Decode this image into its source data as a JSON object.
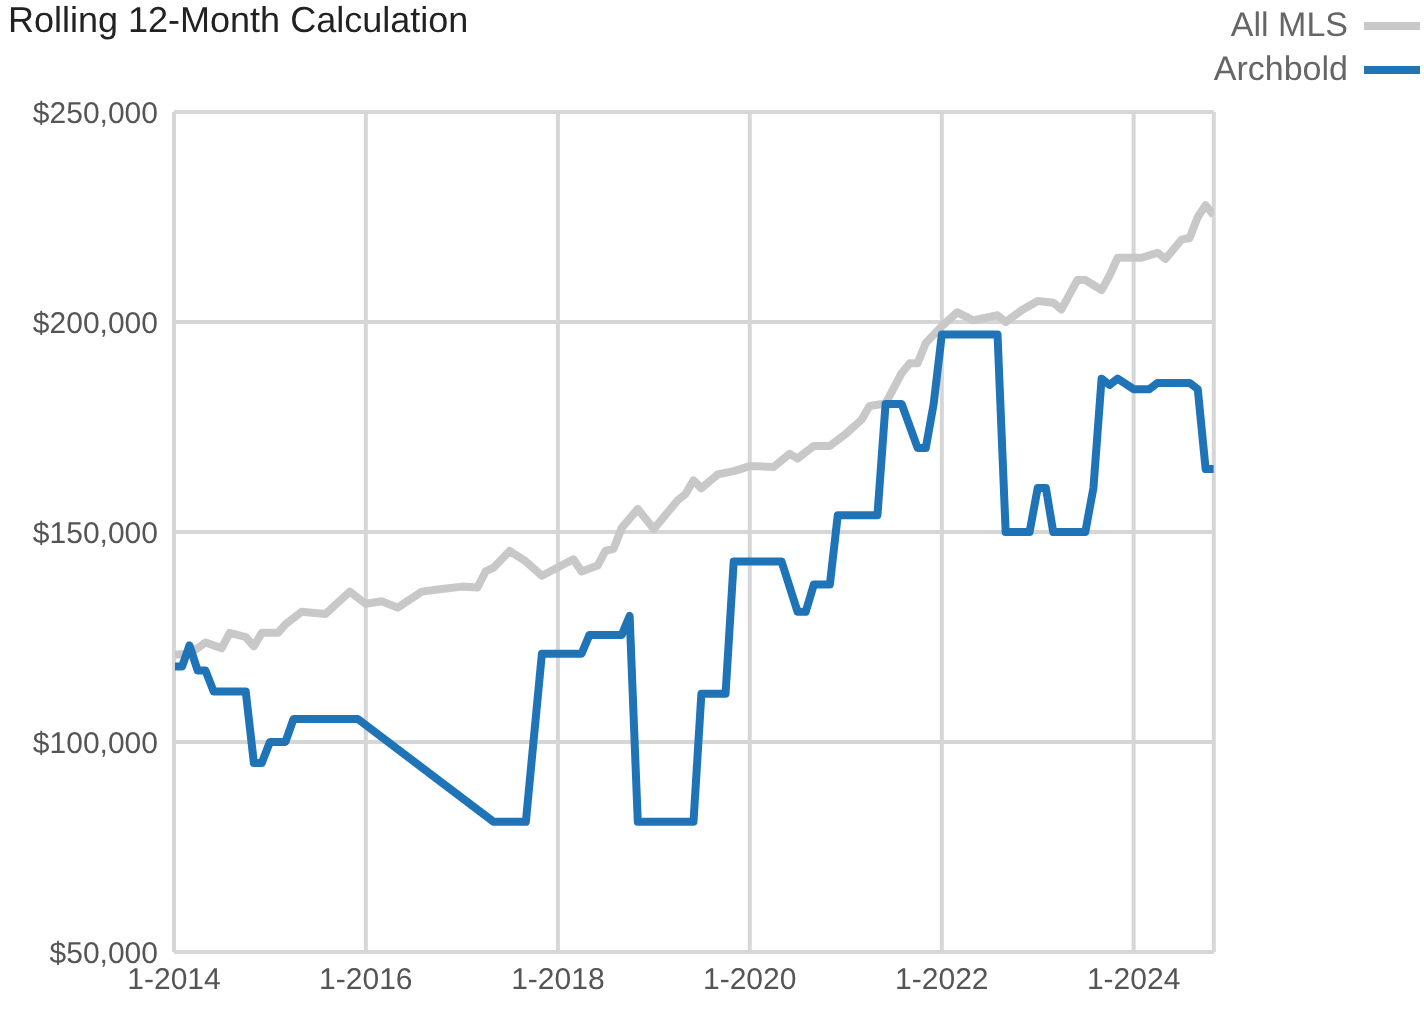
{
  "chart_data": {
    "type": "line",
    "title": "Rolling 12-Month Calculation",
    "legend": "top right",
    "grid": true,
    "marker": "none",
    "line_style": "solid",
    "xlim": [
      "2014-01",
      "2024-11"
    ],
    "xticks": [
      {
        "value": "2014-01",
        "label": "1-2014"
      },
      {
        "value": "2016-01",
        "label": "1-2016"
      },
      {
        "value": "2018-01",
        "label": "1-2018"
      },
      {
        "value": "2020-01",
        "label": "1-2020"
      },
      {
        "value": "2022-01",
        "label": "1-2022"
      },
      {
        "value": "2024-01",
        "label": "1-2024"
      }
    ],
    "ylim": [
      50000,
      250000
    ],
    "yticks": [
      {
        "value": 50000,
        "label": "$50,000"
      },
      {
        "value": 100000,
        "label": "$100,000"
      },
      {
        "value": 150000,
        "label": "$150,000"
      },
      {
        "value": 200000,
        "label": "$200,000"
      },
      {
        "value": 250000,
        "label": "$250,000"
      }
    ],
    "series": [
      {
        "name": "All MLS",
        "color": "#c8c8c8",
        "x": [
          "2014-01",
          "2014-03",
          "2014-05",
          "2014-07",
          "2014-08",
          "2014-10",
          "2014-11",
          "2014-12",
          "2015-02",
          "2015-03",
          "2015-05",
          "2015-08",
          "2015-11",
          "2016-01",
          "2016-03",
          "2016-05",
          "2016-08",
          "2016-10",
          "2017-01",
          "2017-03",
          "2017-04",
          "2017-05",
          "2017-07",
          "2017-09",
          "2017-11",
          "2018-03",
          "2018-04",
          "2018-06",
          "2018-07",
          "2018-08",
          "2018-09",
          "2018-11",
          "2019-01",
          "2019-04",
          "2019-05",
          "2019-06",
          "2019-07",
          "2019-09",
          "2019-11",
          "2020-01",
          "2020-04",
          "2020-06",
          "2020-07",
          "2020-09",
          "2020-11",
          "2021-01",
          "2021-03",
          "2021-04",
          "2021-06",
          "2021-08",
          "2021-09",
          "2021-10",
          "2021-11",
          "2022-01",
          "2022-03",
          "2022-05",
          "2022-08",
          "2022-09",
          "2022-11",
          "2023-01",
          "2023-03",
          "2023-04",
          "2023-06",
          "2023-07",
          "2023-09",
          "2023-10",
          "2023-11",
          "2024-02",
          "2024-04",
          "2024-05",
          "2024-07",
          "2024-08",
          "2024-09",
          "2024-10",
          "2024-11"
        ],
        "values": [
          120800,
          121000,
          123700,
          122300,
          126000,
          125000,
          122800,
          126000,
          126000,
          128000,
          131000,
          130500,
          135800,
          132900,
          133500,
          132000,
          135800,
          136300,
          137000,
          136800,
          140600,
          141500,
          145500,
          143000,
          139600,
          143500,
          140600,
          142000,
          145500,
          146000,
          151000,
          155500,
          150700,
          157500,
          159000,
          162300,
          160400,
          163700,
          164500,
          165700,
          165500,
          168600,
          167500,
          170500,
          170500,
          173400,
          176700,
          180000,
          180600,
          187800,
          190200,
          190200,
          195000,
          199000,
          202300,
          200400,
          201600,
          200000,
          202800,
          205000,
          204600,
          203000,
          210000,
          210000,
          207600,
          211000,
          215300,
          215300,
          216500,
          215000,
          219600,
          220000,
          225000,
          227800,
          225400
        ]
      },
      {
        "name": "Archbold",
        "color": "#1f74b8",
        "x": [
          "2014-01",
          "2014-02",
          "2014-03",
          "2014-04",
          "2014-05",
          "2014-06",
          "2014-10",
          "2014-11",
          "2014-12",
          "2015-01",
          "2015-03",
          "2015-04",
          "2015-12",
          "2017-05",
          "2017-09",
          "2017-11",
          "2018-04",
          "2018-05",
          "2018-09",
          "2018-10",
          "2018-11",
          "2019-06",
          "2019-07",
          "2019-10",
          "2019-11",
          "2020-05",
          "2020-07",
          "2020-08",
          "2020-09",
          "2020-11",
          "2020-12",
          "2021-05",
          "2021-06",
          "2021-08",
          "2021-10",
          "2021-11",
          "2021-12",
          "2022-01",
          "2022-08",
          "2022-09",
          "2022-12",
          "2023-01",
          "2023-02",
          "2023-03",
          "2023-07",
          "2023-08",
          "2023-09",
          "2023-10",
          "2023-11",
          "2024-01",
          "2024-03",
          "2024-04",
          "2024-08",
          "2024-09",
          "2024-10",
          "2024-11"
        ],
        "values": [
          118000,
          118000,
          123000,
          117000,
          117000,
          112000,
          112000,
          95000,
          95000,
          100000,
          100000,
          105500,
          105500,
          81000,
          81000,
          121000,
          121000,
          125500,
          125500,
          130000,
          81000,
          81000,
          111500,
          111500,
          143000,
          143000,
          131000,
          131000,
          137500,
          137500,
          154000,
          154000,
          180500,
          180500,
          170000,
          170000,
          180500,
          197000,
          197000,
          150000,
          150000,
          160500,
          160500,
          150000,
          150000,
          160500,
          186500,
          185000,
          186500,
          184000,
          184000,
          185500,
          185500,
          184000,
          165000,
          165000
        ]
      }
    ]
  }
}
